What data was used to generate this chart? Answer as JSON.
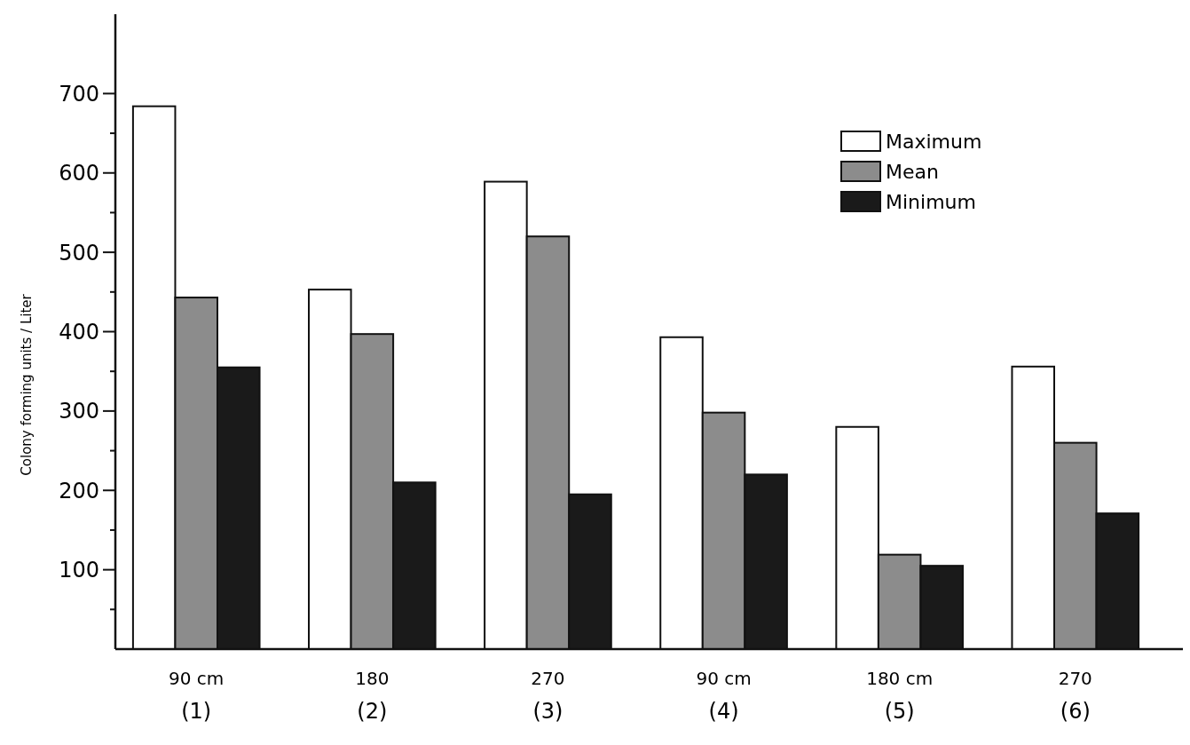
{
  "chart_data": {
    "type": "bar",
    "ylabel": "Colony forming units / Liter",
    "categories": [
      "90 cm\n(1)",
      "180\n(2)",
      "270\n(3)",
      "90 cm\n(4)",
      "180 cm\n(5)",
      "270\n(6)"
    ],
    "series": [
      {
        "name": "Maximum",
        "color": "#ffffff",
        "values": [
          684,
          453,
          589,
          393,
          280,
          356
        ]
      },
      {
        "name": "Mean",
        "color": "#8c8c8c",
        "values": [
          443,
          397,
          520,
          298,
          119,
          260
        ]
      },
      {
        "name": "Minimum",
        "color": "#1a1a1a",
        "values": [
          355,
          210,
          195,
          220,
          105,
          171
        ]
      }
    ],
    "ylim": [
      0,
      800
    ],
    "yticks": [
      {
        "value": 50,
        "label": null
      },
      100,
      {
        "value": 150,
        "label": null
      },
      200,
      {
        "value": 250,
        "label": null
      },
      300,
      {
        "value": 350,
        "label": null
      },
      400,
      {
        "value": 450,
        "label": null
      },
      500,
      {
        "value": 550,
        "label": null
      },
      600,
      {
        "value": 650,
        "label": null
      },
      700
    ],
    "legend": "top right",
    "grid": false
  }
}
